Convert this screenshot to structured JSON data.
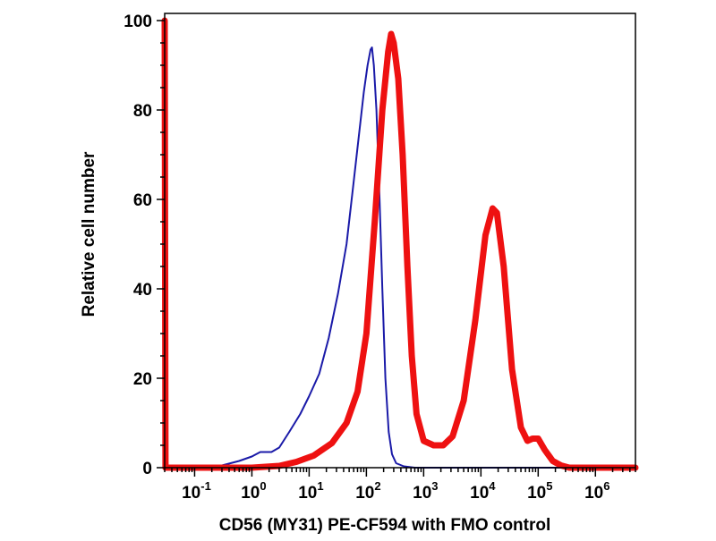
{
  "chart_data": {
    "type": "line",
    "title": "",
    "xlabel": "CD56 (MY31) PE-CF594 with FMO control",
    "ylabel": "Relative cell number",
    "x_scale": "log",
    "xlim": [
      0.03,
      5000000
    ],
    "ylim": [
      0,
      100
    ],
    "y_ticks": [
      {
        "value": 0,
        "label": "0"
      },
      {
        "value": 20,
        "label": "20"
      },
      {
        "value": 40,
        "label": "40"
      },
      {
        "value": 60,
        "label": "60"
      },
      {
        "value": 80,
        "label": "80"
      },
      {
        "value": 100,
        "label": "100"
      }
    ],
    "x_ticks": [
      {
        "value": 0.1,
        "base": "10",
        "exp": "-1"
      },
      {
        "value": 1,
        "base": "10",
        "exp": "0"
      },
      {
        "value": 10,
        "base": "10",
        "exp": "1"
      },
      {
        "value": 100,
        "base": "10",
        "exp": "2"
      },
      {
        "value": 1000,
        "base": "10",
        "exp": "3"
      },
      {
        "value": 10000,
        "base": "10",
        "exp": "4"
      },
      {
        "value": 100000,
        "base": "10",
        "exp": "5"
      },
      {
        "value": 1000000,
        "base": "10",
        "exp": "6"
      }
    ],
    "grid": false,
    "legend": "none",
    "series": [
      {
        "color": "#1a1aa8",
        "points": [
          [
            0.03,
            100
          ],
          [
            0.031,
            0
          ],
          [
            0.1,
            0
          ],
          [
            0.3,
            0.5
          ],
          [
            0.6,
            1.5
          ],
          [
            1,
            2.5
          ],
          [
            1.4,
            3.5
          ],
          [
            2.2,
            3.5
          ],
          [
            3,
            4.5
          ],
          [
            4.5,
            8
          ],
          [
            7,
            12
          ],
          [
            10,
            16
          ],
          [
            15,
            21
          ],
          [
            22,
            29
          ],
          [
            32,
            39
          ],
          [
            45,
            50
          ],
          [
            60,
            64
          ],
          [
            75,
            75
          ],
          [
            90,
            84
          ],
          [
            105,
            90
          ],
          [
            118,
            93.5
          ],
          [
            125,
            94
          ],
          [
            135,
            90
          ],
          [
            150,
            80
          ],
          [
            170,
            60
          ],
          [
            190,
            40
          ],
          [
            215,
            20
          ],
          [
            245,
            8
          ],
          [
            280,
            3
          ],
          [
            330,
            1
          ],
          [
            450,
            0.3
          ],
          [
            700,
            0
          ],
          [
            5000000,
            0
          ]
        ]
      },
      {
        "color": "#ee1111",
        "points": [
          [
            0.03,
            100
          ],
          [
            0.031,
            0
          ],
          [
            1,
            0
          ],
          [
            3,
            0.4
          ],
          [
            6,
            1.3
          ],
          [
            12,
            2.7
          ],
          [
            25,
            5.5
          ],
          [
            45,
            10
          ],
          [
            70,
            17
          ],
          [
            100,
            30
          ],
          [
            140,
            55
          ],
          [
            190,
            80
          ],
          [
            240,
            93
          ],
          [
            270,
            97
          ],
          [
            300,
            95
          ],
          [
            360,
            87
          ],
          [
            430,
            70
          ],
          [
            520,
            45
          ],
          [
            620,
            25
          ],
          [
            750,
            12
          ],
          [
            1000,
            6
          ],
          [
            1500,
            5
          ],
          [
            2200,
            5
          ],
          [
            3200,
            7
          ],
          [
            5000,
            15
          ],
          [
            8000,
            33
          ],
          [
            12000,
            52
          ],
          [
            16000,
            58
          ],
          [
            19000,
            57
          ],
          [
            25000,
            45
          ],
          [
            35000,
            22
          ],
          [
            50000,
            9
          ],
          [
            65000,
            6
          ],
          [
            80000,
            6.5
          ],
          [
            100000,
            6.5
          ],
          [
            130000,
            4
          ],
          [
            180000,
            1.5
          ],
          [
            250000,
            0.5
          ],
          [
            350000,
            0
          ],
          [
            5000000,
            0
          ]
        ]
      }
    ]
  }
}
